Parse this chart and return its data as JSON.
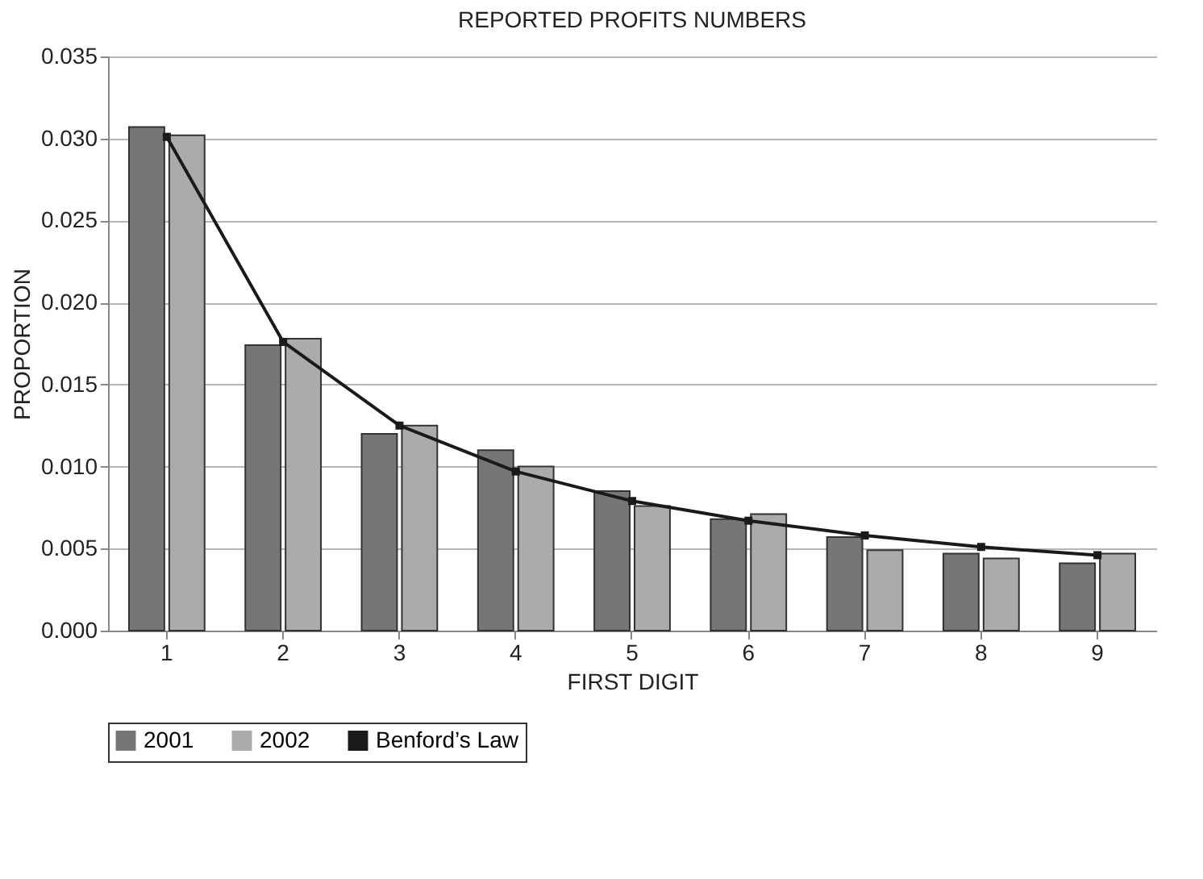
{
  "chart_data": {
    "type": "bar",
    "title": "REPORTED PROFITS NUMBERS",
    "xlabel": "FIRST DIGIT",
    "ylabel": "PROPORTION",
    "categories": [
      "1",
      "2",
      "3",
      "4",
      "5",
      "6",
      "7",
      "8",
      "9"
    ],
    "series": [
      {
        "name": "2001",
        "color": "#767676",
        "values": [
          0.0307,
          0.0174,
          0.012,
          0.011,
          0.0085,
          0.0068,
          0.0057,
          0.0047,
          0.0041
        ]
      },
      {
        "name": "2002",
        "color": "#ababab",
        "values": [
          0.0302,
          0.0178,
          0.0125,
          0.01,
          0.0076,
          0.0071,
          0.0049,
          0.0044,
          0.0047
        ]
      },
      {
        "name": "Benford’s Law",
        "type": "line",
        "color": "#1a1a1a",
        "marker": "square",
        "line_style": "solid",
        "values": [
          0.0301,
          0.0176,
          0.0125,
          0.0097,
          0.0079,
          0.0067,
          0.0058,
          0.0051,
          0.0046
        ]
      }
    ],
    "ylim": [
      0,
      0.035
    ],
    "yticks": [
      {
        "value": 0,
        "label": "0.000"
      },
      {
        "value": 0.005,
        "label": "0.005"
      },
      {
        "value": 0.01,
        "label": "0.010"
      },
      {
        "value": 0.015,
        "label": "0.015"
      },
      {
        "value": 0.02,
        "label": "0.020"
      },
      {
        "value": 0.025,
        "label": "0.025"
      },
      {
        "value": 0.03,
        "label": "0.030"
      },
      {
        "value": 0.035,
        "label": "0.035"
      }
    ],
    "grid": "y",
    "legend": "bottom"
  }
}
